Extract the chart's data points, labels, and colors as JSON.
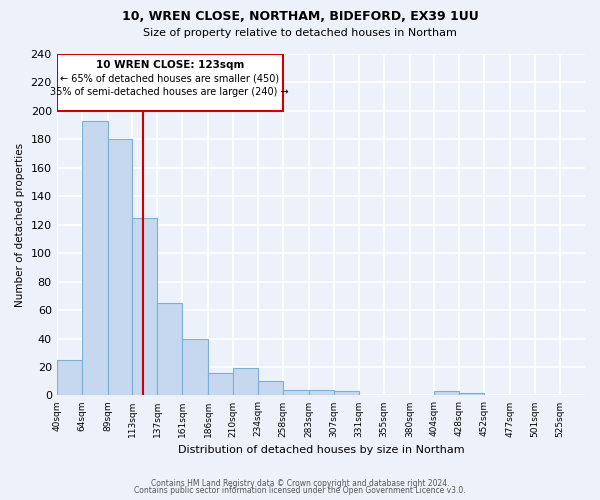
{
  "title1": "10, WREN CLOSE, NORTHAM, BIDEFORD, EX39 1UU",
  "title2": "Size of property relative to detached houses in Northam",
  "xlabel": "Distribution of detached houses by size in Northam",
  "ylabel": "Number of detached properties",
  "bar_color": "#c5d8f0",
  "bar_edge_color": "#7bafd4",
  "background_color": "#edf2fa",
  "grid_color": "#ffffff",
  "bin_labels": [
    "40sqm",
    "64sqm",
    "89sqm",
    "113sqm",
    "137sqm",
    "161sqm",
    "186sqm",
    "210sqm",
    "234sqm",
    "258sqm",
    "283sqm",
    "307sqm",
    "331sqm",
    "355sqm",
    "380sqm",
    "404sqm",
    "428sqm",
    "452sqm",
    "477sqm",
    "501sqm",
    "525sqm"
  ],
  "bin_edges": [
    40,
    64,
    89,
    113,
    137,
    161,
    186,
    210,
    234,
    258,
    283,
    307,
    331,
    355,
    380,
    404,
    428,
    452,
    477,
    501,
    525,
    549
  ],
  "bar_heights": [
    25,
    193,
    180,
    125,
    65,
    40,
    16,
    19,
    10,
    4,
    4,
    3,
    0,
    0,
    0,
    3,
    2,
    0,
    0,
    0,
    0
  ],
  "ylim": [
    0,
    240
  ],
  "yticks": [
    0,
    20,
    40,
    60,
    80,
    100,
    120,
    140,
    160,
    180,
    200,
    220,
    240
  ],
  "vline_x": 123,
  "vline_color": "#cc0000",
  "annotation_line1": "10 WREN CLOSE: 123sqm",
  "annotation_line2": "← 65% of detached houses are smaller (450)",
  "annotation_line3": "35% of semi-detached houses are larger (240) →",
  "footer1": "Contains HM Land Registry data © Crown copyright and database right 2024.",
  "footer2": "Contains public sector information licensed under the Open Government Licence v3.0."
}
